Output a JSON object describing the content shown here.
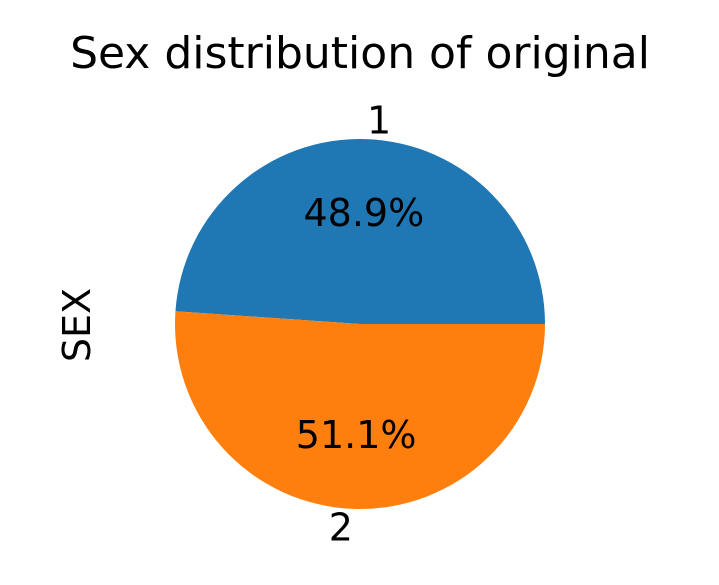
{
  "chart_data": {
    "type": "pie",
    "title": "Sex distribution of original",
    "ylabel": "SEX",
    "slices": [
      {
        "label": "1",
        "value": 48.9,
        "pct_label": "48.9%",
        "color": "#1f77b4"
      },
      {
        "label": "2",
        "value": 51.1,
        "pct_label": "51.1%",
        "color": "#ff7f0e"
      }
    ]
  }
}
